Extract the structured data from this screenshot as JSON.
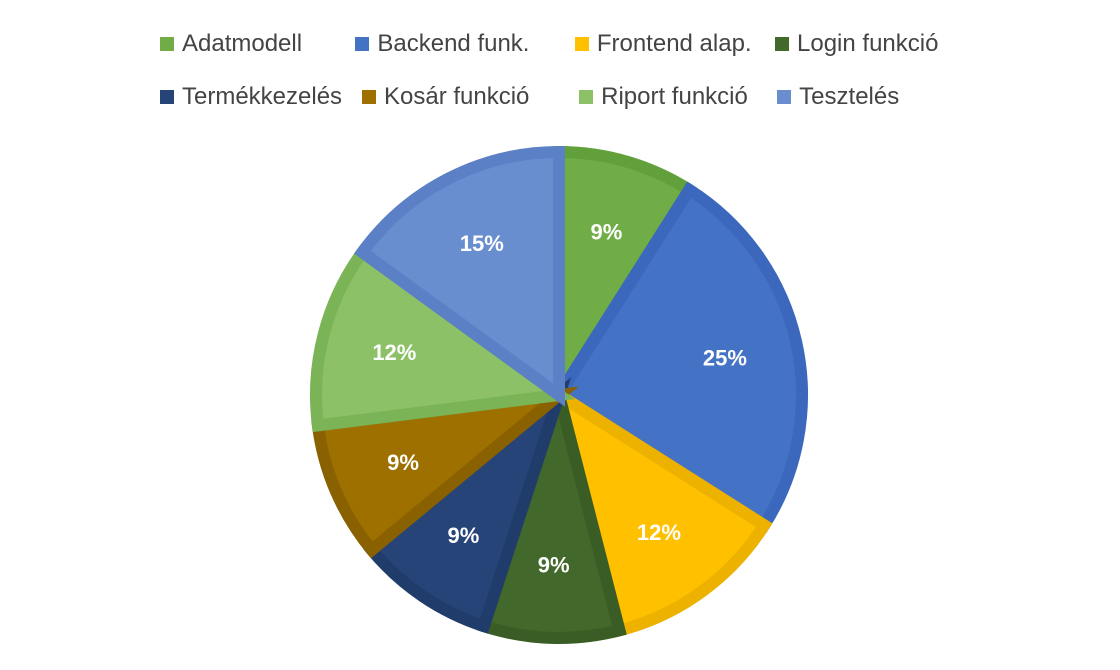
{
  "chart_data": {
    "type": "pie",
    "title": "",
    "legend_position": "top",
    "categories": [
      "Adatmodell",
      "Backend funk.",
      "Frontend alap.",
      "Login funkció",
      "Termékkezelés",
      "Kosár funkció",
      "Riport funkció",
      "Tesztelés"
    ],
    "values": [
      9,
      25,
      12,
      9,
      9,
      9,
      12,
      15
    ],
    "data_labels": [
      "9%",
      "25%",
      "12%",
      "9%",
      "9%",
      "9%",
      "12%",
      "15%"
    ],
    "colors": [
      "#70AD47",
      "#4472C4",
      "#FFC000",
      "#43682B",
      "#264478",
      "#9E7000",
      "#8CC168",
      "#698ED0"
    ],
    "border_colors": [
      "#61A03A",
      "#3B68BC",
      "#EDB200",
      "#3A5C25",
      "#203C6B",
      "#8A6100",
      "#7BB357",
      "#5C80C5"
    ]
  }
}
